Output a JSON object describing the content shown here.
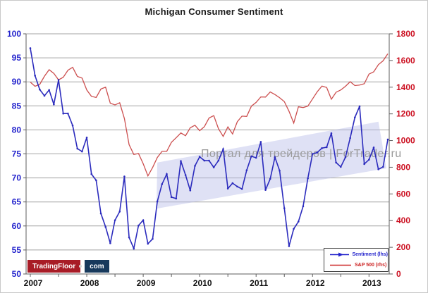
{
  "chart_data": {
    "type": "line",
    "title": "Michigan Consumer Sentiment",
    "x_start": "2007-01",
    "x_frequency": "monthly",
    "x_tick_labels": [
      "2007",
      "2008",
      "2009",
      "2010",
      "2011",
      "2012",
      "2013"
    ],
    "x_label_color": "#111111",
    "grid": true,
    "legend_position": "bottom-right",
    "y_left": {
      "min": 50,
      "max": 100,
      "step": 5,
      "color": "#2222cc",
      "ticks": [
        "100",
        "95",
        "90",
        "85",
        "80",
        "75",
        "70",
        "65",
        "60",
        "55",
        "50"
      ]
    },
    "y_right": {
      "min": 0,
      "max": 1800,
      "step": 200,
      "color": "#cc1122",
      "ticks": [
        "1800",
        "1600",
        "1400",
        "1200",
        "1000",
        "800",
        "600",
        "400",
        "200",
        "0"
      ]
    },
    "series": [
      {
        "name": "Sentiment (lhs)",
        "axis": "left",
        "color": "#2b2bbd",
        "markers": true,
        "values": [
          97.0,
          91.3,
          88.4,
          87.1,
          88.3,
          85.3,
          90.4,
          83.4,
          83.4,
          80.9,
          76.1,
          75.5,
          78.4,
          70.8,
          69.5,
          62.6,
          59.8,
          56.4,
          61.2,
          63.0,
          70.3,
          57.6,
          55.3,
          60.1,
          61.2,
          56.3,
          57.3,
          65.1,
          68.7,
          70.8,
          66.0,
          65.7,
          73.5,
          70.6,
          67.4,
          72.5,
          74.4,
          73.6,
          73.6,
          72.2,
          73.6,
          76.0,
          67.8,
          68.9,
          68.2,
          67.7,
          71.6,
          74.5,
          74.2,
          77.5,
          67.5,
          69.8,
          74.3,
          71.5,
          63.7,
          55.8,
          59.4,
          60.9,
          64.1,
          69.9,
          75.0,
          75.3,
          76.2,
          76.4,
          79.3,
          73.2,
          72.3,
          74.3,
          78.3,
          82.6,
          84.9,
          72.9,
          73.8,
          76.3,
          71.8,
          72.3,
          78.0
        ]
      },
      {
        "name": "S&P 500 (rhs)",
        "axis": "right",
        "color": "#cc4f4f",
        "markers": false,
        "values": [
          1438,
          1407,
          1421,
          1482,
          1531,
          1503,
          1455,
          1474,
          1527,
          1549,
          1481,
          1468,
          1379,
          1331,
          1323,
          1386,
          1400,
          1280,
          1267,
          1283,
          1165,
          969,
          896,
          903,
          826,
          735,
          798,
          873,
          919,
          919,
          987,
          1021,
          1057,
          1036,
          1096,
          1115,
          1074,
          1104,
          1169,
          1187,
          1089,
          1031,
          1102,
          1049,
          1141,
          1183,
          1181,
          1258,
          1286,
          1327,
          1326,
          1364,
          1345,
          1321,
          1292,
          1219,
          1131,
          1253,
          1247,
          1258,
          1312,
          1366,
          1408,
          1398,
          1310,
          1362,
          1379,
          1407,
          1441,
          1412,
          1416,
          1426,
          1498,
          1515,
          1569,
          1598,
          1650
        ]
      }
    ],
    "annotations": {
      "trend_channel": {
        "description": "upward-sloping highlight band over sentiment recovery 2009-2013",
        "fill": "#b9bce8",
        "opacity": 0.45,
        "corners_month_value": [
          [
            27,
            73.2
          ],
          [
            74,
            81.7
          ],
          [
            75.7,
            72.0
          ],
          [
            26.8,
            63.6
          ]
        ]
      }
    }
  },
  "legend": {
    "items": [
      {
        "label": "Sentiment (lhs)",
        "color": "#2222cc"
      },
      {
        "label": "S&P 500 (rhs)",
        "color": "#cc2222"
      }
    ]
  },
  "watermark": {
    "text": "Портал для трейдеров | ForTrader.ru",
    "color": "#9b9b9b"
  },
  "logo": {
    "name": "TradingFloor",
    "separator": "•",
    "tld": "com",
    "name_bg": "#a81c26",
    "tld_bg": "#17395c"
  }
}
